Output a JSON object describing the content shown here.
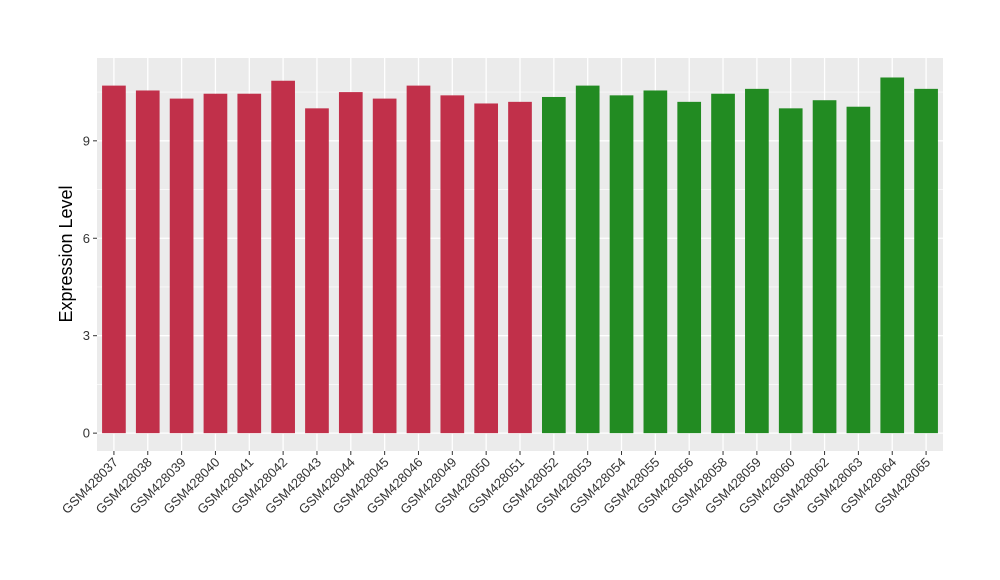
{
  "chart_data": {
    "type": "bar",
    "title": "",
    "xlabel": "",
    "ylabel": "Expression Level",
    "ylim": [
      -0.55,
      11.55
    ],
    "yticks": [
      0,
      3,
      6,
      9
    ],
    "grid": true,
    "legend": "none",
    "categories": [
      "GSM428037",
      "GSM428038",
      "GSM428039",
      "GSM428040",
      "GSM428041",
      "GSM428042",
      "GSM428043",
      "GSM428044",
      "GSM428045",
      "GSM428046",
      "GSM428049",
      "GSM428050",
      "GSM428051",
      "GSM428052",
      "GSM428053",
      "GSM428054",
      "GSM428055",
      "GSM428056",
      "GSM428058",
      "GSM428059",
      "GSM428060",
      "GSM428062",
      "GSM428063",
      "GSM428064",
      "GSM428065"
    ],
    "values": [
      10.7,
      10.55,
      10.3,
      10.45,
      10.45,
      10.85,
      10.0,
      10.5,
      10.3,
      10.7,
      10.4,
      10.15,
      10.2,
      10.35,
      10.7,
      10.4,
      10.55,
      10.2,
      10.45,
      10.6,
      10.0,
      10.25,
      10.05,
      10.95,
      10.6
    ],
    "group_of_bar": [
      0,
      0,
      0,
      0,
      0,
      0,
      0,
      0,
      0,
      0,
      0,
      0,
      0,
      1,
      1,
      1,
      1,
      1,
      1,
      1,
      1,
      1,
      1,
      1,
      1
    ],
    "group_colors": [
      "#c1304a",
      "#228b22"
    ],
    "panel_background": "#ebebeb",
    "grid_color": "#ffffff"
  }
}
